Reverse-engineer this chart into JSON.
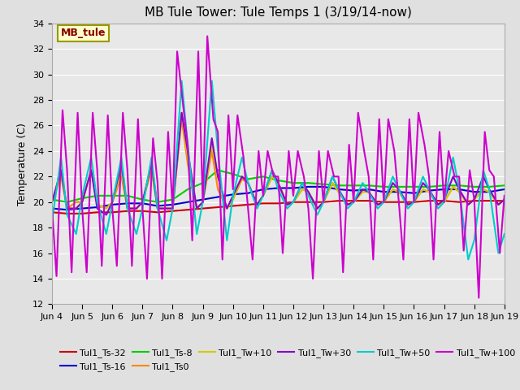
{
  "title": "MB Tule Tower: Tule Temps 1 (3/19/14-now)",
  "ylabel": "Temperature (C)",
  "ylim": [
    12,
    34
  ],
  "yticks": [
    12,
    14,
    16,
    18,
    20,
    22,
    24,
    26,
    28,
    30,
    32,
    34
  ],
  "bg_color": "#e0e0e0",
  "plot_bg_color": "#e8e8e8",
  "grid_color": "white",
  "x_start": 4,
  "x_end": 19,
  "x_ticks": [
    4,
    5,
    6,
    7,
    8,
    9,
    10,
    11,
    12,
    13,
    14,
    15,
    16,
    17,
    18,
    19
  ],
  "x_labels": [
    "Jun 4",
    "Jun 5",
    "Jun 6",
    "Jun 7",
    "Jun 8",
    "Jun 9",
    "Jun 10",
    "Jun 11",
    "Jun 12",
    "Jun 13",
    "Jun 14",
    "Jun 15",
    "Jun 16",
    "Jun 17",
    "Jun 18",
    "Jun 19"
  ],
  "series_order": [
    "Tul1_Ts-32",
    "Tul1_Ts-16",
    "Tul1_Ts-8",
    "Tul1_Ts0",
    "Tul1_Tw+10",
    "Tul1_Tw+30",
    "Tul1_Tw+50",
    "Tul1_Tw+100"
  ],
  "series": {
    "Tul1_Ts-32": {
      "color": "#cc0000",
      "lw": 1.5,
      "x": [
        4.0,
        4.5,
        5.0,
        5.5,
        6.0,
        6.5,
        7.0,
        7.5,
        8.0,
        8.5,
        9.0,
        9.5,
        10.0,
        10.5,
        11.0,
        11.5,
        12.0,
        12.5,
        13.0,
        13.5,
        14.0,
        14.5,
        15.0,
        15.5,
        16.0,
        16.5,
        17.0,
        17.5,
        18.0,
        18.5,
        19.0
      ],
      "y": [
        19.2,
        19.1,
        19.1,
        19.2,
        19.2,
        19.3,
        19.3,
        19.2,
        19.3,
        19.4,
        19.5,
        19.6,
        19.7,
        19.8,
        19.9,
        19.9,
        20.0,
        20.0,
        20.0,
        20.1,
        20.1,
        20.1,
        20.0,
        20.0,
        20.0,
        20.1,
        20.1,
        20.0,
        20.1,
        20.1,
        20.1
      ]
    },
    "Tul1_Ts-16": {
      "color": "#0000cc",
      "lw": 1.5,
      "x": [
        4.0,
        4.5,
        5.0,
        5.5,
        6.0,
        6.5,
        7.0,
        7.5,
        8.0,
        8.5,
        9.0,
        9.5,
        10.0,
        10.5,
        11.0,
        11.5,
        12.0,
        12.5,
        13.0,
        13.5,
        14.0,
        14.5,
        15.0,
        15.5,
        16.0,
        16.5,
        17.0,
        17.5,
        18.0,
        18.5,
        19.0
      ],
      "y": [
        19.5,
        19.4,
        19.5,
        19.6,
        19.8,
        19.9,
        19.9,
        19.7,
        19.8,
        20.0,
        20.2,
        20.4,
        20.6,
        20.7,
        21.0,
        21.1,
        21.1,
        21.2,
        21.2,
        21.0,
        20.9,
        21.0,
        20.8,
        20.8,
        20.7,
        20.9,
        21.0,
        21.0,
        20.8,
        20.8,
        21.0
      ]
    },
    "Tul1_Ts-8": {
      "color": "#00cc00",
      "lw": 1.5,
      "x": [
        4.0,
        4.5,
        5.0,
        5.5,
        6.0,
        6.5,
        7.0,
        7.5,
        8.0,
        8.5,
        9.0,
        9.5,
        10.0,
        10.5,
        11.0,
        11.5,
        12.0,
        12.5,
        13.0,
        13.5,
        14.0,
        14.5,
        15.0,
        15.5,
        16.0,
        16.5,
        17.0,
        17.5,
        18.0,
        18.5,
        19.0
      ],
      "y": [
        20.2,
        20.0,
        20.3,
        20.5,
        20.5,
        20.5,
        20.2,
        20.0,
        20.2,
        21.0,
        21.5,
        22.5,
        22.2,
        21.8,
        22.0,
        21.7,
        21.5,
        21.5,
        21.4,
        21.3,
        21.3,
        21.3,
        21.2,
        21.2,
        21.2,
        21.2,
        21.3,
        21.3,
        21.2,
        21.2,
        21.3
      ]
    },
    "Tul1_Ts0": {
      "color": "#ff8800",
      "lw": 1.5,
      "x": [
        4.0,
        4.3,
        4.5,
        4.8,
        5.0,
        5.3,
        5.5,
        5.8,
        6.0,
        6.3,
        6.5,
        6.8,
        7.0,
        7.3,
        7.5,
        7.8,
        8.0,
        8.3,
        8.5,
        8.8,
        9.0,
        9.3,
        9.5,
        9.8,
        10.0,
        10.3,
        10.5,
        10.8,
        11.0,
        11.3,
        11.5,
        11.8,
        12.0,
        12.3,
        12.5,
        12.8,
        13.0,
        13.3,
        13.5,
        13.8,
        14.0,
        14.3,
        14.5,
        14.8,
        15.0,
        15.3,
        15.5,
        15.8,
        16.0,
        16.3,
        16.5,
        16.8,
        17.0,
        17.3,
        17.5,
        17.8,
        18.0,
        18.3,
        18.5,
        18.8,
        19.0
      ],
      "y": [
        20.0,
        22.0,
        19.5,
        20.0,
        20.0,
        22.5,
        19.8,
        19.5,
        20.0,
        22.0,
        19.5,
        19.5,
        20.0,
        22.5,
        19.5,
        19.5,
        19.5,
        26.5,
        23.0,
        19.5,
        20.0,
        24.0,
        21.0,
        19.5,
        20.2,
        21.8,
        21.5,
        19.8,
        20.5,
        22.0,
        21.5,
        19.8,
        20.0,
        21.0,
        20.8,
        19.5,
        20.0,
        21.5,
        20.8,
        19.8,
        20.0,
        20.8,
        20.8,
        19.8,
        20.0,
        21.0,
        20.8,
        19.8,
        20.0,
        21.0,
        20.8,
        19.8,
        20.0,
        21.2,
        20.8,
        19.8,
        20.2,
        21.0,
        20.8,
        19.8,
        20.2
      ]
    },
    "Tul1_Tw+10": {
      "color": "#cccc00",
      "lw": 1.5,
      "x": [
        4.0,
        4.3,
        4.5,
        4.8,
        5.0,
        5.3,
        5.5,
        5.8,
        6.0,
        6.3,
        6.5,
        6.8,
        7.0,
        7.3,
        7.5,
        7.8,
        8.0,
        8.3,
        8.5,
        8.8,
        9.0,
        9.3,
        9.5,
        9.8,
        10.0,
        10.3,
        10.5,
        10.8,
        11.0,
        11.3,
        11.5,
        11.8,
        12.0,
        12.3,
        12.5,
        12.8,
        13.0,
        13.3,
        13.5,
        13.8,
        14.0,
        14.3,
        14.5,
        14.8,
        15.0,
        15.3,
        15.5,
        15.8,
        16.0,
        16.3,
        16.5,
        16.8,
        17.0,
        17.3,
        17.5,
        17.8,
        18.0,
        18.3,
        18.5,
        18.8,
        19.0
      ],
      "y": [
        20.0,
        22.5,
        19.5,
        19.5,
        20.0,
        22.5,
        19.8,
        19.5,
        20.0,
        22.5,
        19.5,
        19.5,
        20.0,
        23.0,
        19.5,
        19.5,
        19.5,
        27.0,
        23.5,
        19.5,
        20.0,
        24.5,
        22.0,
        19.5,
        20.2,
        22.0,
        21.5,
        19.8,
        20.5,
        22.0,
        21.5,
        19.8,
        20.0,
        21.0,
        20.8,
        19.5,
        20.0,
        21.5,
        20.8,
        19.8,
        20.0,
        20.8,
        20.8,
        19.8,
        20.0,
        21.0,
        20.8,
        19.8,
        20.0,
        21.0,
        20.8,
        19.8,
        20.0,
        21.2,
        20.8,
        19.8,
        20.2,
        21.0,
        20.8,
        19.8,
        20.2
      ]
    },
    "Tul1_Tw+30": {
      "color": "#8800cc",
      "lw": 1.5,
      "x": [
        4.0,
        4.3,
        4.5,
        4.8,
        5.0,
        5.3,
        5.5,
        5.8,
        6.0,
        6.3,
        6.5,
        6.8,
        7.0,
        7.3,
        7.5,
        7.8,
        8.0,
        8.3,
        8.5,
        8.8,
        9.0,
        9.3,
        9.5,
        9.8,
        10.0,
        10.3,
        10.5,
        10.8,
        11.0,
        11.3,
        11.5,
        11.8,
        12.0,
        12.3,
        12.5,
        12.8,
        13.0,
        13.3,
        13.5,
        13.8,
        14.0,
        14.3,
        14.5,
        14.8,
        15.0,
        15.3,
        15.5,
        15.8,
        16.0,
        16.3,
        16.5,
        16.8,
        17.0,
        17.3,
        17.5,
        17.8,
        18.0,
        18.3,
        18.5,
        18.8,
        19.0
      ],
      "y": [
        20.0,
        22.5,
        19.5,
        19.5,
        20.0,
        22.5,
        19.5,
        19.0,
        20.0,
        23.0,
        19.5,
        19.5,
        20.0,
        23.0,
        19.5,
        19.5,
        19.5,
        27.0,
        24.0,
        19.5,
        20.0,
        25.0,
        22.0,
        19.5,
        20.5,
        22.0,
        21.5,
        19.8,
        20.5,
        22.5,
        21.5,
        19.8,
        20.0,
        21.5,
        20.8,
        19.5,
        20.0,
        22.0,
        21.0,
        19.8,
        20.0,
        21.0,
        20.8,
        19.8,
        20.0,
        21.5,
        21.0,
        19.8,
        20.0,
        21.5,
        21.0,
        19.8,
        20.2,
        22.0,
        21.0,
        19.8,
        20.2,
        22.0,
        21.0,
        19.8,
        20.2
      ]
    },
    "Tul1_Tw+50": {
      "color": "#00cccc",
      "lw": 1.5,
      "x": [
        4.0,
        4.3,
        4.5,
        4.8,
        5.0,
        5.3,
        5.5,
        5.8,
        6.0,
        6.3,
        6.5,
        6.8,
        7.0,
        7.3,
        7.5,
        7.8,
        8.0,
        8.3,
        8.5,
        8.8,
        9.0,
        9.3,
        9.5,
        9.8,
        10.0,
        10.3,
        10.5,
        10.8,
        11.0,
        11.3,
        11.5,
        11.8,
        12.0,
        12.3,
        12.5,
        12.8,
        13.0,
        13.3,
        13.5,
        13.8,
        14.0,
        14.3,
        14.5,
        14.8,
        15.0,
        15.3,
        15.5,
        15.8,
        16.0,
        16.3,
        16.5,
        16.8,
        17.0,
        17.3,
        17.5,
        17.8,
        18.0,
        18.3,
        18.5,
        18.8,
        19.0
      ],
      "y": [
        18.5,
        23.5,
        19.0,
        17.5,
        20.5,
        23.5,
        20.0,
        17.5,
        20.0,
        23.5,
        19.5,
        17.5,
        19.5,
        23.5,
        19.5,
        17.0,
        19.5,
        29.5,
        24.5,
        17.5,
        20.0,
        29.5,
        24.0,
        17.0,
        20.5,
        23.5,
        21.5,
        19.5,
        20.5,
        22.5,
        21.0,
        19.5,
        20.0,
        21.5,
        20.5,
        19.0,
        20.0,
        22.0,
        21.0,
        19.5,
        20.0,
        21.5,
        20.8,
        19.5,
        20.0,
        22.0,
        21.0,
        19.5,
        20.0,
        22.0,
        21.0,
        19.5,
        20.0,
        23.5,
        21.0,
        15.5,
        17.0,
        22.5,
        21.0,
        16.0,
        17.5
      ]
    },
    "Tul1_Tw+100": {
      "color": "#cc00cc",
      "lw": 1.5,
      "x": [
        4.0,
        4.15,
        4.35,
        4.5,
        4.65,
        4.85,
        5.0,
        5.15,
        5.35,
        5.5,
        5.65,
        5.85,
        6.0,
        6.15,
        6.35,
        6.5,
        6.65,
        6.85,
        7.0,
        7.15,
        7.35,
        7.5,
        7.65,
        7.85,
        8.0,
        8.15,
        8.35,
        8.5,
        8.65,
        8.85,
        9.0,
        9.15,
        9.35,
        9.5,
        9.65,
        9.85,
        10.0,
        10.15,
        10.35,
        10.5,
        10.65,
        10.85,
        11.0,
        11.15,
        11.35,
        11.5,
        11.65,
        11.85,
        12.0,
        12.15,
        12.35,
        12.5,
        12.65,
        12.85,
        13.0,
        13.15,
        13.35,
        13.5,
        13.65,
        13.85,
        14.0,
        14.15,
        14.35,
        14.5,
        14.65,
        14.85,
        15.0,
        15.15,
        15.35,
        15.5,
        15.65,
        15.85,
        16.0,
        16.15,
        16.35,
        16.5,
        16.65,
        16.85,
        17.0,
        17.15,
        17.35,
        17.5,
        17.65,
        17.85,
        18.0,
        18.15,
        18.35,
        18.5,
        18.65,
        18.85,
        19.0
      ],
      "y": [
        19.5,
        14.2,
        27.2,
        22.5,
        14.5,
        27.0,
        19.5,
        14.5,
        27.0,
        22.5,
        15.0,
        26.8,
        19.5,
        15.0,
        27.0,
        22.5,
        15.0,
        26.5,
        19.5,
        14.0,
        25.0,
        21.5,
        14.0,
        25.5,
        19.5,
        31.8,
        27.5,
        24.5,
        17.0,
        31.8,
        20.0,
        33.0,
        26.5,
        25.5,
        15.5,
        26.8,
        21.0,
        26.8,
        23.5,
        19.5,
        15.5,
        24.0,
        20.5,
        24.0,
        22.0,
        22.0,
        16.0,
        24.0,
        20.5,
        24.0,
        22.0,
        19.5,
        14.0,
        24.0,
        20.0,
        24.0,
        22.0,
        22.0,
        14.5,
        24.5,
        20.0,
        27.0,
        24.0,
        22.0,
        15.5,
        26.5,
        20.0,
        26.5,
        24.0,
        20.0,
        15.5,
        26.5,
        20.0,
        27.0,
        24.5,
        22.0,
        15.5,
        25.5,
        20.0,
        24.0,
        22.0,
        22.0,
        16.2,
        22.5,
        20.2,
        12.5,
        25.5,
        22.5,
        22.0,
        16.0,
        20.5
      ]
    }
  },
  "legend_box_text": "MB_tule",
  "legend_box_color": "#ffffcc",
  "legend_box_border": "#999900",
  "legend_box_text_color": "#880000",
  "legend_rows": [
    [
      "Tul1_Ts-32",
      "Tul1_Ts-16",
      "Tul1_Ts-8",
      "Tul1_Ts0",
      "Tul1_Tw+10",
      "Tul1_Tw+30"
    ],
    [
      "Tul1_Tw+50",
      "Tul1_Tw+100"
    ]
  ],
  "title_fontsize": 11,
  "tick_fontsize": 8,
  "label_fontsize": 9
}
